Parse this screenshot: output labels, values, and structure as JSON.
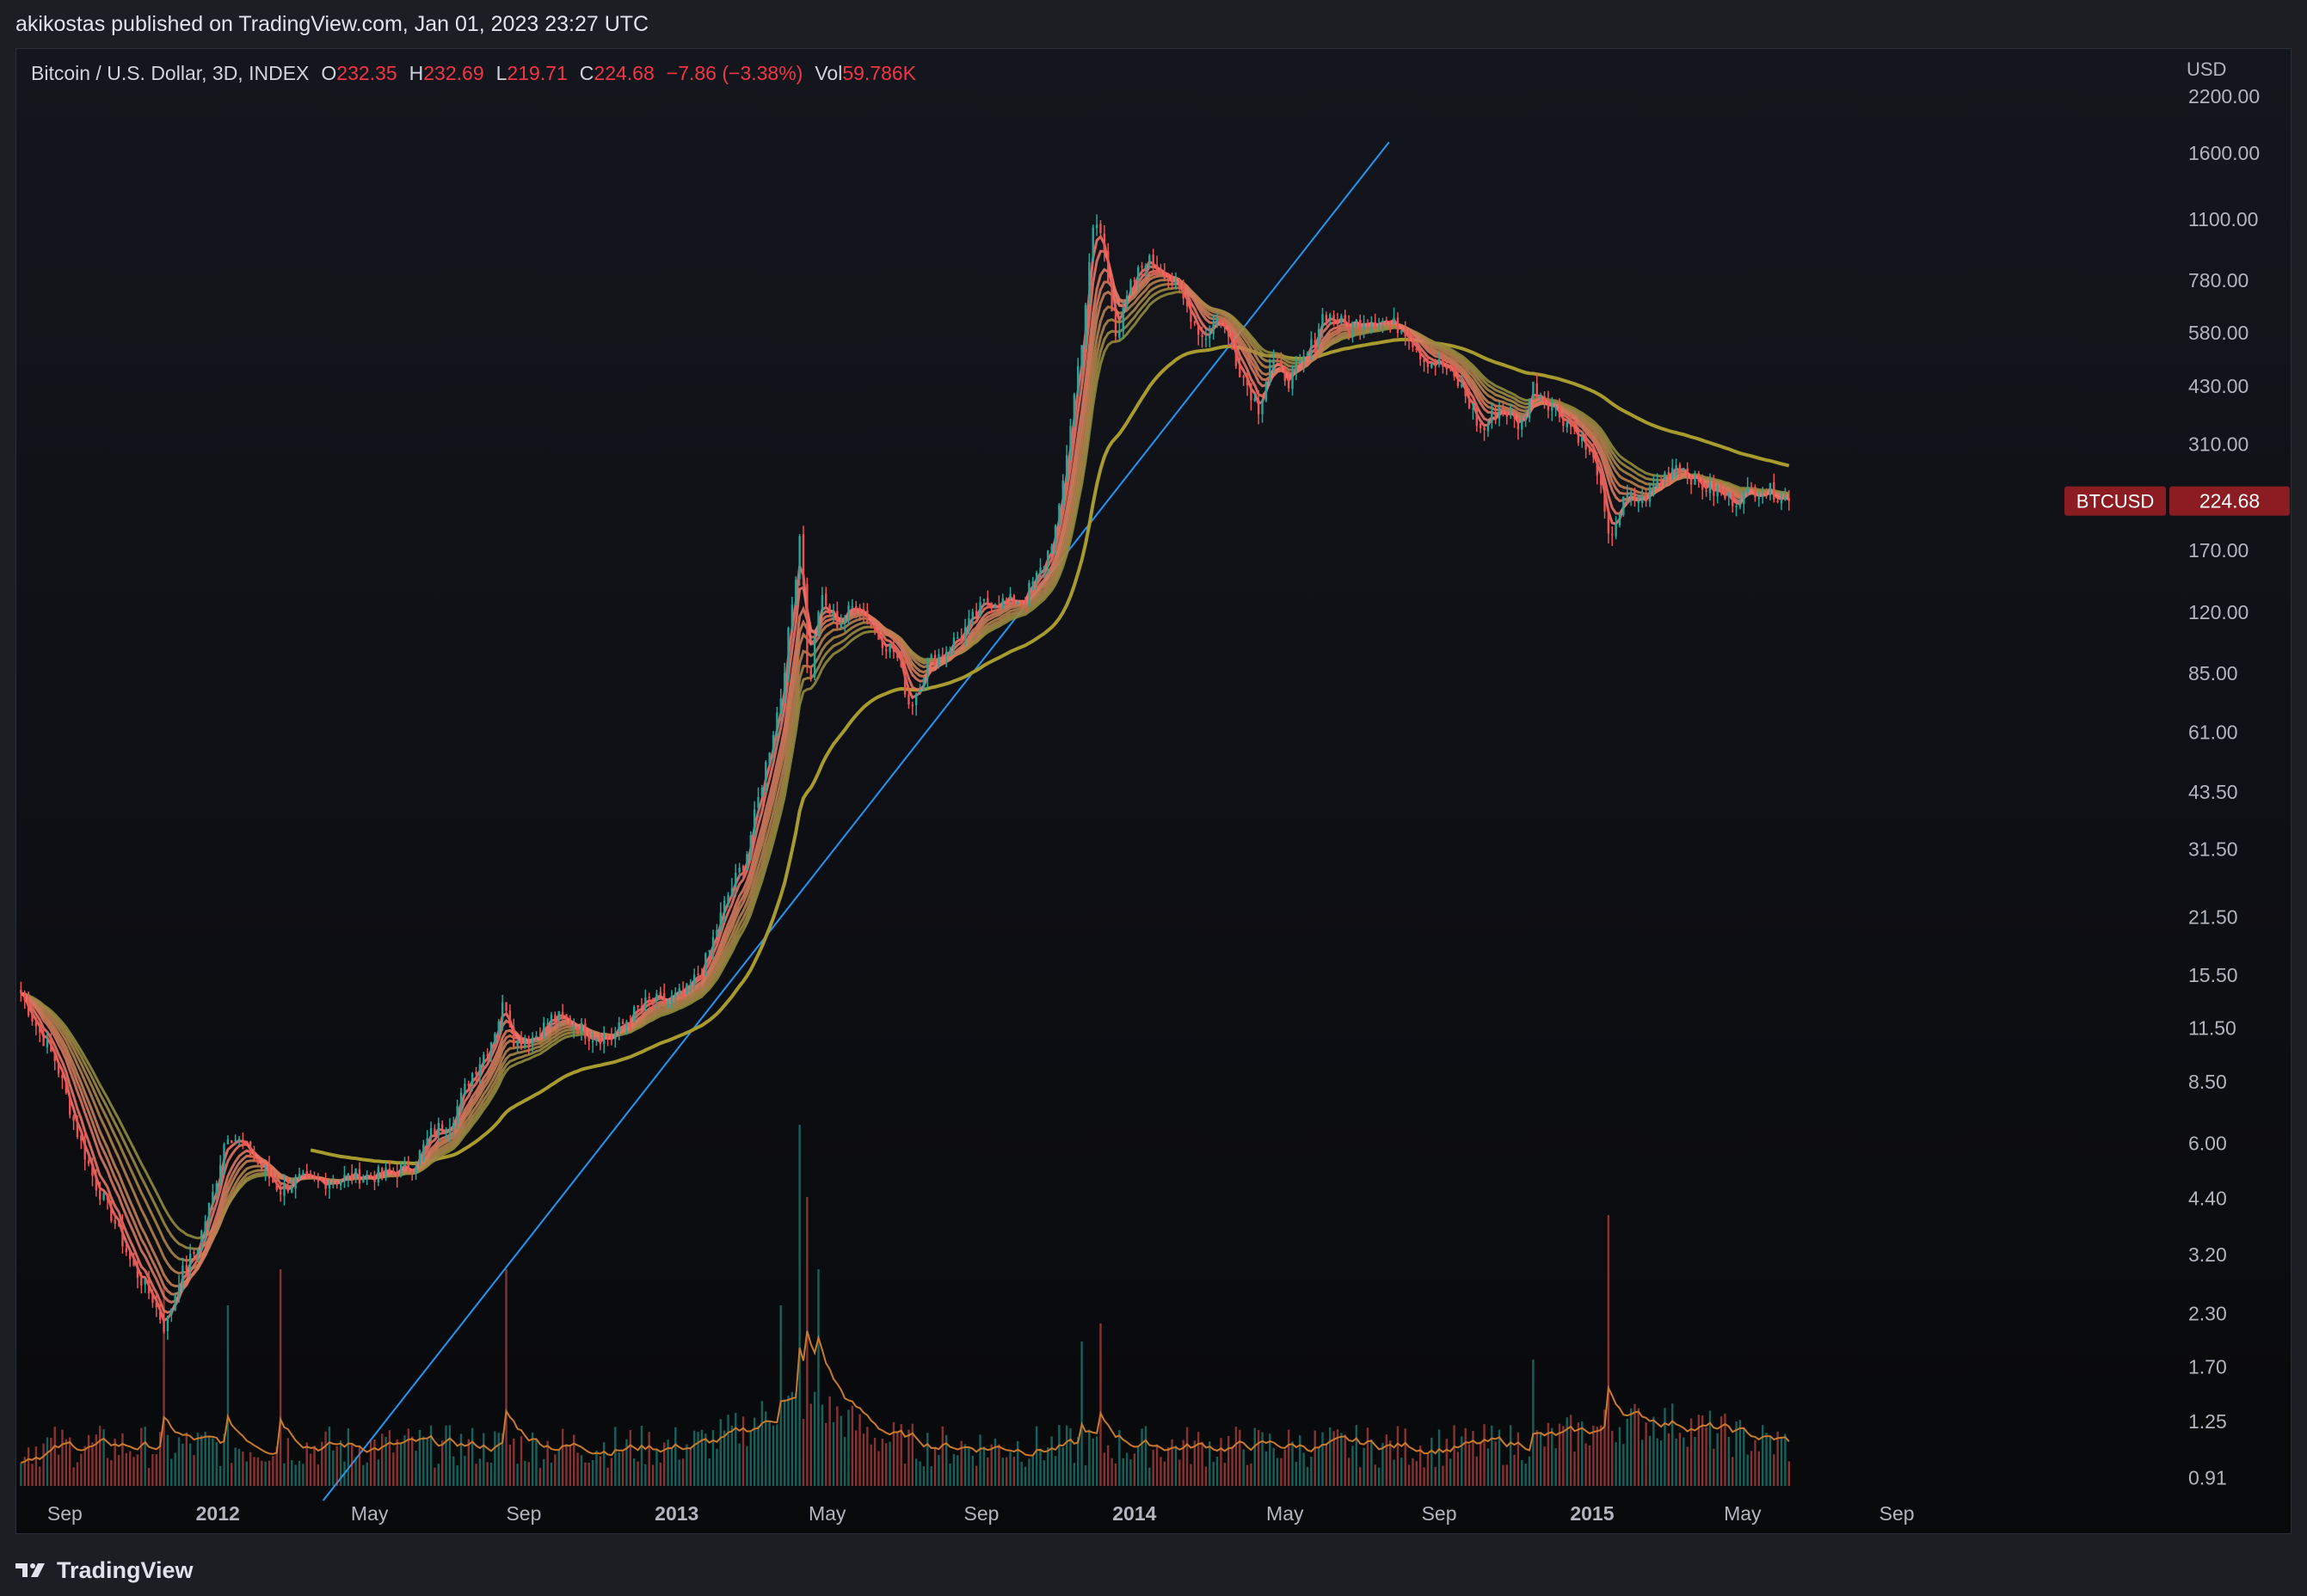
{
  "publisher_line": "akikostas published on TradingView.com, Jan 01, 2023 23:27 UTC",
  "brand": "TradingView",
  "legend": {
    "symbol": "Bitcoin / U.S. Dollar, 3D, INDEX",
    "open_label": "O",
    "open": "232.35",
    "high_label": "H",
    "high": "232.69",
    "low_label": "L",
    "low": "219.71",
    "close_label": "C",
    "close": "224.68",
    "change": "−7.86 (−3.38%)",
    "vol_label": "Vol",
    "vol": "59.786K"
  },
  "price_tag": {
    "symbol": "BTCUSD",
    "value": "224.68"
  },
  "colors": {
    "up": "#26a69a",
    "down": "#ef5350",
    "ribbon_fast": "#f0706a",
    "ribbon_slow": "#8f8a3c",
    "long_ma": "#a79b2f",
    "trendline": "#2196f3",
    "volume_ma": "#c77a2e",
    "price_tag": "#8a1c22"
  },
  "icons": {
    "logo": "tradingview-logo-icon"
  },
  "chart_data": {
    "type": "candlestick",
    "y_scale": "log",
    "y_unit": "USD",
    "y_ticks": [
      2200,
      1600,
      1100,
      780,
      580,
      430,
      310,
      224.68,
      170,
      120,
      85,
      61,
      43.5,
      31.5,
      21.5,
      15.5,
      11.5,
      8.5,
      6.0,
      4.4,
      3.2,
      2.3,
      1.7,
      1.25,
      0.91
    ],
    "y_tick_labels": [
      "2200.00",
      "1600.00",
      "1100.00",
      "780.00",
      "580.00",
      "430.00",
      "310.00",
      "",
      "170.00",
      "120.00",
      "85.00",
      "61.00",
      "43.50",
      "31.50",
      "21.50",
      "15.50",
      "11.50",
      "8.50",
      "6.00",
      "4.40",
      "3.20",
      "2.30",
      "1.70",
      "1.25",
      "0.91"
    ],
    "x_ticks": [
      {
        "date": "2011-09-01",
        "label": "Sep",
        "bold": false
      },
      {
        "date": "2012-01-01",
        "label": "2012",
        "bold": true
      },
      {
        "date": "2012-05-01",
        "label": "May",
        "bold": false
      },
      {
        "date": "2012-09-01",
        "label": "Sep",
        "bold": false
      },
      {
        "date": "2013-01-01",
        "label": "2013",
        "bold": true
      },
      {
        "date": "2013-05-01",
        "label": "May",
        "bold": false
      },
      {
        "date": "2013-09-01",
        "label": "Sep",
        "bold": false
      },
      {
        "date": "2014-01-01",
        "label": "2014",
        "bold": true
      },
      {
        "date": "2014-05-01",
        "label": "May",
        "bold": false
      },
      {
        "date": "2014-09-01",
        "label": "Sep",
        "bold": false
      },
      {
        "date": "2015-01-01",
        "label": "2015",
        "bold": true
      },
      {
        "date": "2015-05-01",
        "label": "May",
        "bold": false
      },
      {
        "date": "2015-09-01",
        "label": "Sep",
        "bold": false
      }
    ],
    "x_range": [
      "2011-07-25",
      "2015-10-10"
    ],
    "y_range": [
      0.8,
      2700
    ],
    "price_path": [
      [
        "2011-07-28",
        14.0
      ],
      [
        "2011-08-10",
        11.5
      ],
      [
        "2011-08-25",
        9.5
      ],
      [
        "2011-09-10",
        6.5
      ],
      [
        "2011-09-25",
        4.8
      ],
      [
        "2011-10-10",
        3.9
      ],
      [
        "2011-10-25",
        3.0
      ],
      [
        "2011-11-10",
        2.5
      ],
      [
        "2011-11-20",
        2.1
      ],
      [
        "2011-12-01",
        2.8
      ],
      [
        "2011-12-15",
        3.3
      ],
      [
        "2011-12-28",
        4.5
      ],
      [
        "2012-01-08",
        6.4
      ],
      [
        "2012-01-20",
        6.0
      ],
      [
        "2012-02-05",
        5.2
      ],
      [
        "2012-02-20",
        4.6
      ],
      [
        "2012-03-05",
        4.9
      ],
      [
        "2012-03-20",
        4.8
      ],
      [
        "2012-04-05",
        4.9
      ],
      [
        "2012-04-20",
        5.0
      ],
      [
        "2012-05-05",
        5.0
      ],
      [
        "2012-05-20",
        5.1
      ],
      [
        "2012-06-05",
        5.3
      ],
      [
        "2012-06-20",
        6.4
      ],
      [
        "2012-07-05",
        6.8
      ],
      [
        "2012-07-20",
        8.7
      ],
      [
        "2012-08-05",
        10.5
      ],
      [
        "2012-08-17",
        13.5
      ],
      [
        "2012-08-25",
        10.5
      ],
      [
        "2012-09-10",
        11.0
      ],
      [
        "2012-09-25",
        12.3
      ],
      [
        "2012-10-10",
        11.8
      ],
      [
        "2012-10-25",
        11.0
      ],
      [
        "2012-11-10",
        10.9
      ],
      [
        "2012-11-25",
        12.3
      ],
      [
        "2012-12-10",
        13.4
      ],
      [
        "2012-12-25",
        13.4
      ],
      [
        "2013-01-10",
        14.2
      ],
      [
        "2013-01-25",
        17.0
      ],
      [
        "2013-02-10",
        24.0
      ],
      [
        "2013-02-25",
        30.0
      ],
      [
        "2013-03-10",
        46.0
      ],
      [
        "2013-03-25",
        75.0
      ],
      [
        "2013-04-05",
        140.0
      ],
      [
        "2013-04-10",
        200.0
      ],
      [
        "2013-04-16",
        75.0
      ],
      [
        "2013-04-25",
        130.0
      ],
      [
        "2013-05-10",
        112.0
      ],
      [
        "2013-05-25",
        128.0
      ],
      [
        "2013-06-10",
        105.0
      ],
      [
        "2013-06-25",
        95.0
      ],
      [
        "2013-07-06",
        70.0
      ],
      [
        "2013-07-20",
        90.0
      ],
      [
        "2013-08-05",
        98.0
      ],
      [
        "2013-08-20",
        110.0
      ],
      [
        "2013-09-05",
        128.0
      ],
      [
        "2013-09-20",
        127.0
      ],
      [
        "2013-10-05",
        130.0
      ],
      [
        "2013-10-20",
        155.0
      ],
      [
        "2013-11-01",
        200.0
      ],
      [
        "2013-11-10",
        330.0
      ],
      [
        "2013-11-20",
        560.0
      ],
      [
        "2013-11-30",
        1100.0
      ],
      [
        "2013-12-06",
        1000.0
      ],
      [
        "2013-12-18",
        560.0
      ],
      [
        "2013-12-28",
        740.0
      ],
      [
        "2014-01-10",
        880.0
      ],
      [
        "2014-01-25",
        820.0
      ],
      [
        "2014-02-10",
        690.0
      ],
      [
        "2014-02-25",
        560.0
      ],
      [
        "2014-03-10",
        640.0
      ],
      [
        "2014-03-25",
        480.0
      ],
      [
        "2014-04-10",
        380.0
      ],
      [
        "2014-04-20",
        500.0
      ],
      [
        "2014-05-05",
        440.0
      ],
      [
        "2014-05-20",
        520.0
      ],
      [
        "2014-06-01",
        650.0
      ],
      [
        "2014-06-20",
        600.0
      ],
      [
        "2014-07-05",
        630.0
      ],
      [
        "2014-07-20",
        620.0
      ],
      [
        "2014-08-05",
        590.0
      ],
      [
        "2014-08-20",
        500.0
      ],
      [
        "2014-09-05",
        480.0
      ],
      [
        "2014-09-20",
        420.0
      ],
      [
        "2014-10-05",
        330.0
      ],
      [
        "2014-10-20",
        385.0
      ],
      [
        "2014-11-05",
        340.0
      ],
      [
        "2014-11-15",
        430.0
      ],
      [
        "2014-12-01",
        380.0
      ],
      [
        "2014-12-20",
        330.0
      ],
      [
        "2015-01-05",
        270.0
      ],
      [
        "2015-01-14",
        180.0
      ],
      [
        "2015-01-28",
        230.0
      ],
      [
        "2015-02-10",
        225.0
      ],
      [
        "2015-02-25",
        255.0
      ],
      [
        "2015-03-10",
        280.0
      ],
      [
        "2015-03-25",
        250.0
      ],
      [
        "2015-04-10",
        235.0
      ],
      [
        "2015-04-25",
        225.0
      ],
      [
        "2015-05-10",
        240.0
      ],
      [
        "2015-05-25",
        237.0
      ],
      [
        "2015-06-08",
        226.0
      ]
    ],
    "trendline": [
      [
        "2012-03-25",
        0.8
      ],
      [
        "2014-07-23",
        1700
      ]
    ],
    "long_ma_start": "2012-03-15",
    "ribbon_periods": [
      3,
      5,
      8,
      10,
      12,
      15,
      18,
      21,
      24
    ],
    "long_ma_period": 67,
    "volume_ma_period": 10,
    "volume_spikes": [
      [
        "2011-11-20",
        0.55
      ],
      [
        "2012-01-10",
        0.5
      ],
      [
        "2012-02-20",
        0.6
      ],
      [
        "2012-08-17",
        0.6
      ],
      [
        "2013-03-25",
        0.5
      ],
      [
        "2013-04-10",
        1.0
      ],
      [
        "2013-04-16",
        0.8
      ],
      [
        "2013-04-25",
        0.6
      ],
      [
        "2013-11-20",
        0.4
      ],
      [
        "2013-12-06",
        0.45
      ],
      [
        "2014-11-15",
        0.35
      ],
      [
        "2015-01-14",
        0.75
      ]
    ],
    "current_price": 224.68
  }
}
